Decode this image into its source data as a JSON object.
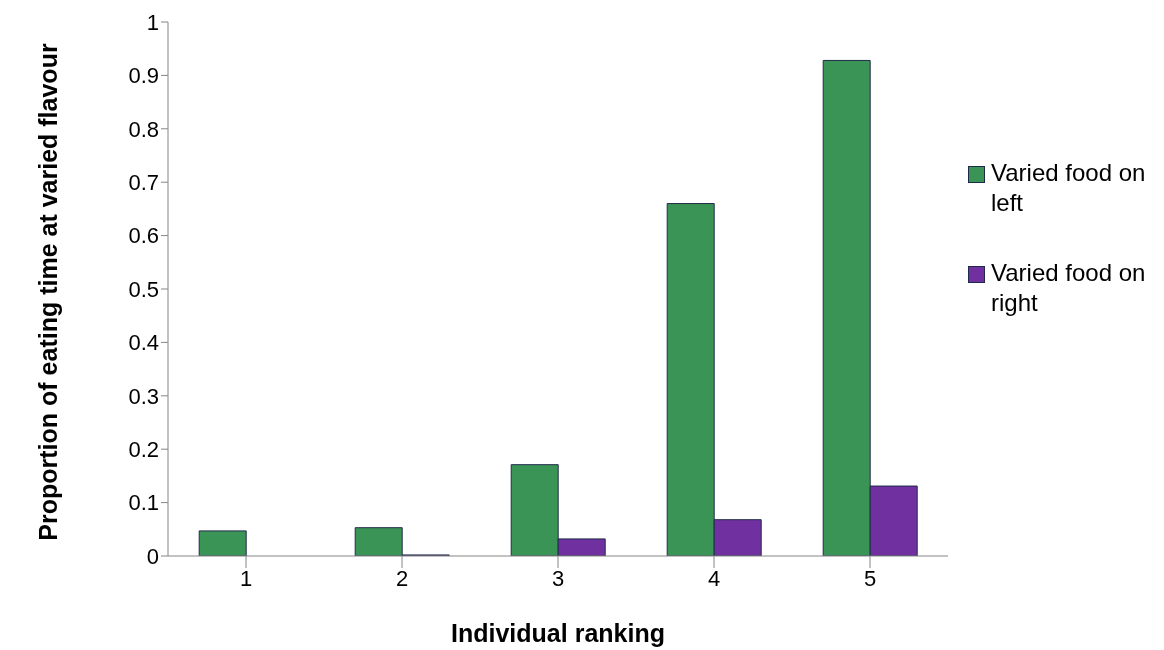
{
  "chart_data": {
    "type": "bar",
    "xlabel": "Individual ranking",
    "ylabel": "Proportion of eating time at varied flavour",
    "categories": [
      "1",
      "2",
      "3",
      "4",
      "5"
    ],
    "series": [
      {
        "name": "Varied food on left",
        "color": "#3a9456",
        "values": [
          0.047,
          0.053,
          0.171,
          0.66,
          0.928
        ]
      },
      {
        "name": "Varied food on right",
        "color": "#7030a0",
        "values": [
          0,
          0.002,
          0.032,
          0.068,
          0.131
        ]
      }
    ],
    "ylim": [
      0,
      1
    ],
    "yticks": [
      0,
      0.1,
      0.2,
      0.3,
      0.4,
      0.5,
      0.6,
      0.7,
      0.8,
      0.9,
      1
    ],
    "grid": false,
    "legend": "right"
  }
}
